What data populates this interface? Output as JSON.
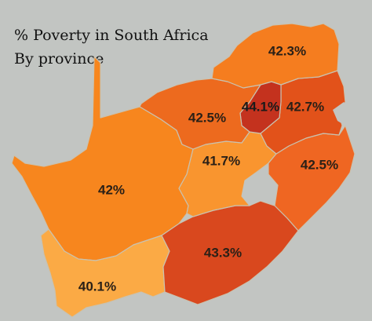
{
  "title": {
    "line1": "% Poverty in South Africa",
    "line2": "By province"
  },
  "provinces": [
    {
      "id": "limpopo",
      "value": "42.3%",
      "color": "#f57d1f"
    },
    {
      "id": "north-west",
      "value": "42.5%",
      "color": "#ed6a1e"
    },
    {
      "id": "gauteng",
      "value": "44.1%",
      "color": "#c4321e"
    },
    {
      "id": "mpumalanga",
      "value": "42.7%",
      "color": "#e2521a"
    },
    {
      "id": "free-state",
      "value": "41.7%",
      "color": "#f9952f"
    },
    {
      "id": "kwazulu-natal",
      "value": "42.5%",
      "color": "#ef6622"
    },
    {
      "id": "northern-cape",
      "value": "42%",
      "color": "#f7861e"
    },
    {
      "id": "eastern-cape",
      "value": "43.3%",
      "color": "#d9481e"
    },
    {
      "id": "western-cape",
      "value": "40.1%",
      "color": "#fbaa45"
    }
  ],
  "colors": {
    "background": "#c2c5c2",
    "lesotho": "#c2c5c2",
    "eswatini": "#c2c5c2",
    "border": "#c9c2b0"
  }
}
